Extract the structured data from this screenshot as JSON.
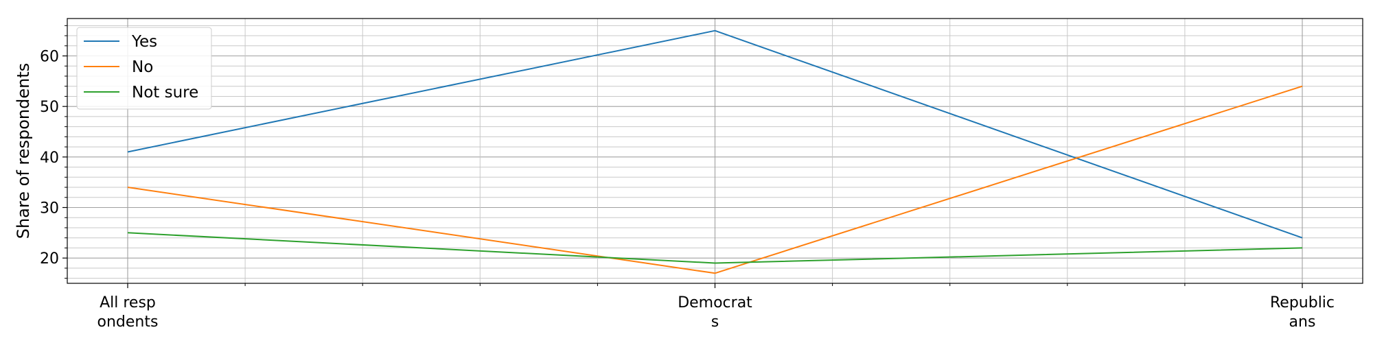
{
  "chart_data": {
    "type": "line",
    "categories": [
      "All respondents",
      "Democrats",
      "Republicans"
    ],
    "category_tick_lines": [
      [
        "All resp",
        "ondents"
      ],
      [
        "Democrat",
        "s"
      ],
      [
        "Republic",
        "ans"
      ]
    ],
    "series": [
      {
        "name": "Yes",
        "values": [
          41,
          65,
          24
        ],
        "color": "#1f77b4"
      },
      {
        "name": "No",
        "values": [
          34,
          17,
          54
        ],
        "color": "#ff7f0e"
      },
      {
        "name": "Not sure",
        "values": [
          25,
          19,
          22
        ],
        "color": "#2ca02c"
      }
    ],
    "ylabel": "Share of respondents",
    "xlabel": "",
    "ylim": [
      15,
      67.4
    ],
    "yticks": [
      20,
      30,
      40,
      50,
      60
    ],
    "grid": true,
    "legend_position": "top-left"
  }
}
